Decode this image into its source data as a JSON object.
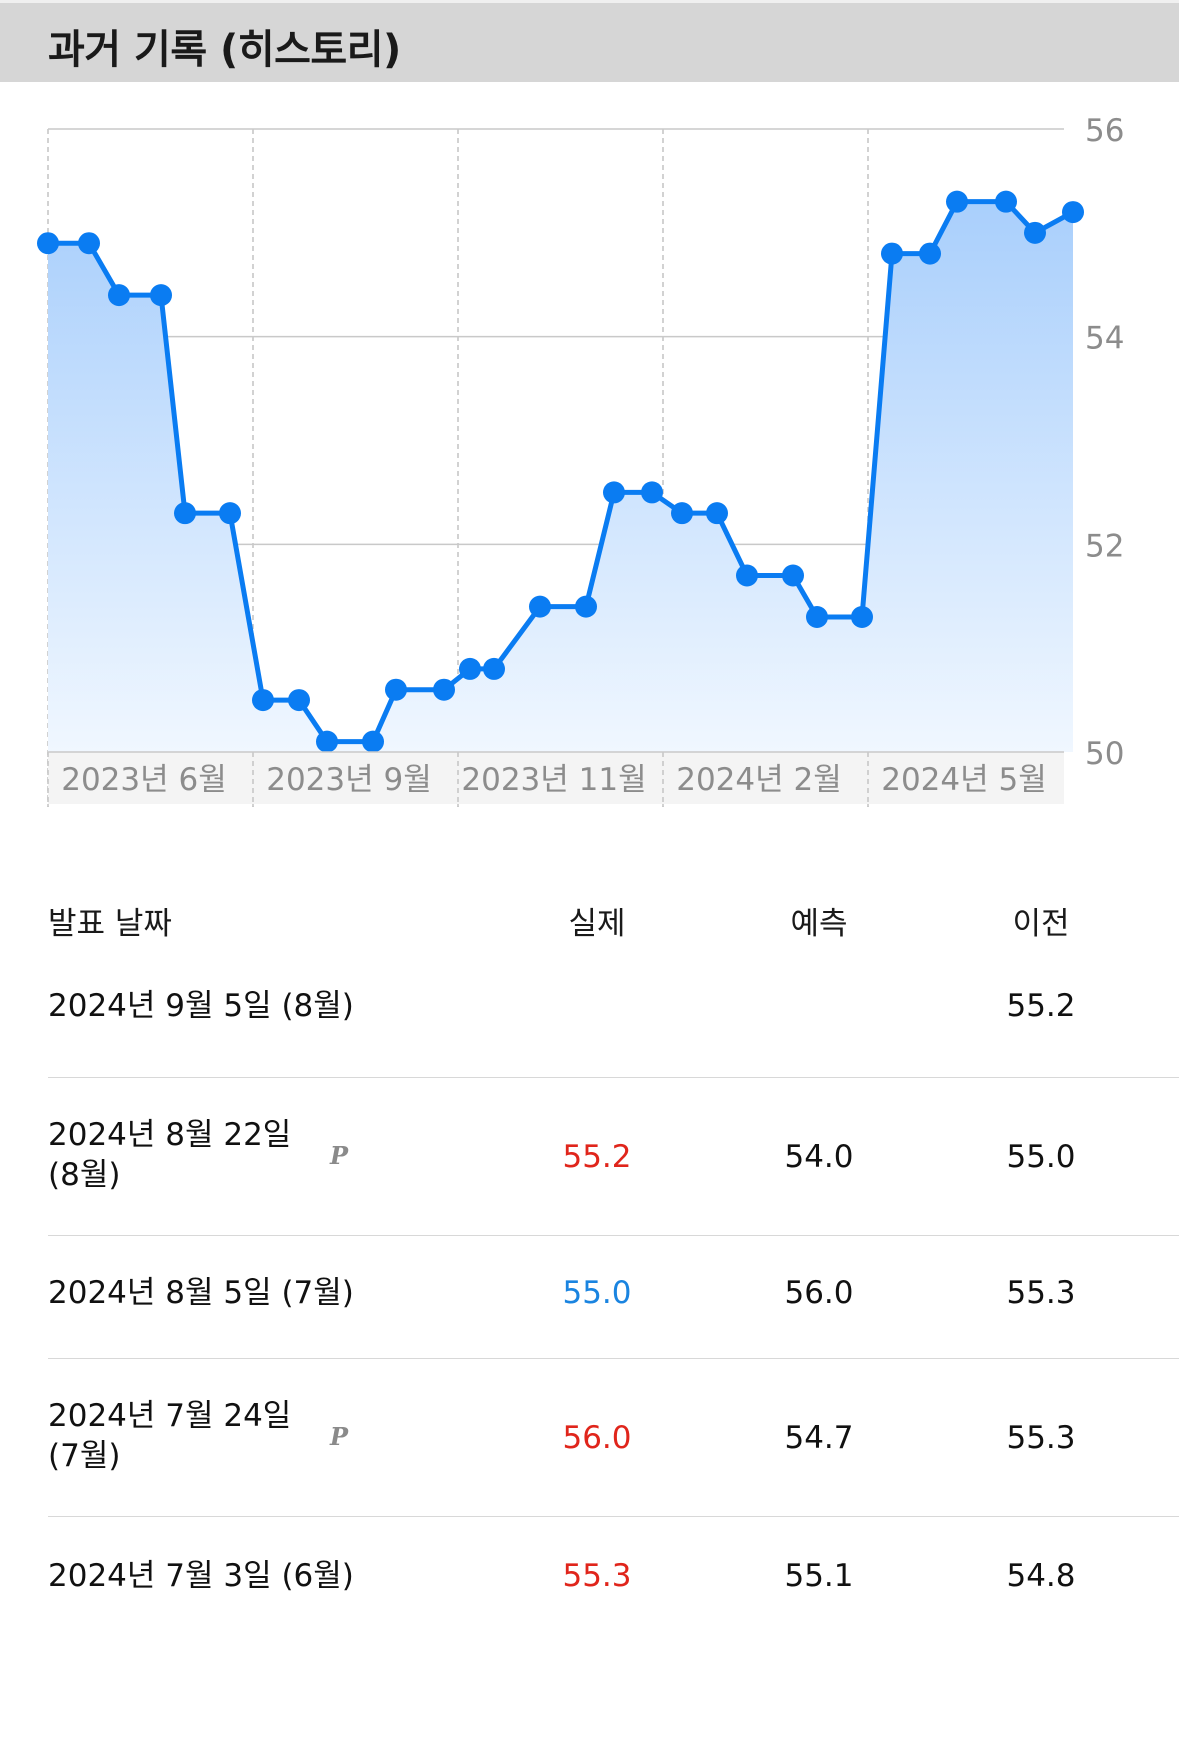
{
  "header": {
    "title": "과거 기록 (히스토리)"
  },
  "colors": {
    "line": "#0a7cf2",
    "fill_top": "#a9cffc",
    "fill_bottom": "#f0f7ff",
    "actual_up": "#e0251b",
    "actual_down": "#1a84e0"
  },
  "chart_data": {
    "type": "line",
    "title": "",
    "xlabel": "",
    "ylabel": "",
    "ylim": [
      50,
      56
    ],
    "yticks": [
      "56",
      "54",
      "52",
      "50"
    ],
    "x_tick_labels": [
      "2023년 6월",
      "2023년 9월",
      "2023년 11월",
      "2024년 2월",
      "2024년 5월"
    ],
    "grid": true,
    "series": [
      {
        "values": [
          54.9,
          54.9,
          54.4,
          54.4,
          52.3,
          52.3,
          50.5,
          50.5,
          50.1,
          50.1,
          50.6,
          50.6,
          50.8,
          50.8,
          51.4,
          51.4,
          52.5,
          52.5,
          52.3,
          52.3,
          51.7,
          51.7,
          51.3,
          51.3,
          54.8,
          54.8,
          55.3,
          55.3,
          55.0,
          55.2
        ]
      }
    ]
  },
  "table": {
    "headers": {
      "date": "발표 날짜",
      "actual": "실제",
      "forecast": "예측",
      "previous": "이전"
    },
    "rows": [
      {
        "date": "2024년 9월 5일 (8월)",
        "prelim": "",
        "actual": "",
        "actual_dir": "",
        "forecast": "",
        "previous": "55.2"
      },
      {
        "date": "2024년 8월 22일 (8월)",
        "prelim": "P",
        "actual": "55.2",
        "actual_dir": "up",
        "forecast": "54.0",
        "previous": "55.0"
      },
      {
        "date": "2024년 8월 5일 (7월)",
        "prelim": "",
        "actual": "55.0",
        "actual_dir": "down",
        "forecast": "56.0",
        "previous": "55.3"
      },
      {
        "date": "2024년 7월 24일 (7월)",
        "prelim": "P",
        "actual": "56.0",
        "actual_dir": "up",
        "forecast": "54.7",
        "previous": "55.3"
      },
      {
        "date": "2024년 7월 3일 (6월)",
        "prelim": "",
        "actual": "55.3",
        "actual_dir": "up",
        "forecast": "55.1",
        "previous": "54.8"
      }
    ]
  }
}
